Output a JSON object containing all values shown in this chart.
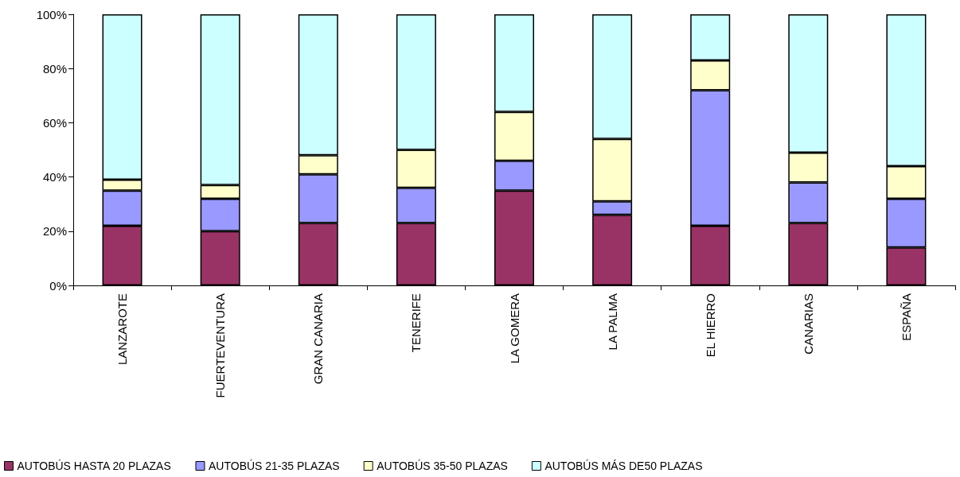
{
  "chart_data": {
    "type": "bar",
    "stacked": true,
    "categories": [
      "LANZAROTE",
      "FUERTEVENTURA",
      "GRAN CANARIA",
      "TENERIFE",
      "LA GOMERA",
      "LA PALMA",
      "EL HIERRO",
      "CANARIAS",
      "ESPAÑA"
    ],
    "series": [
      {
        "name": "AUTOBÚS HASTA 20 PLAZAS",
        "color": "#993366",
        "values": [
          22,
          20,
          23,
          23,
          35,
          26,
          22,
          23,
          14
        ]
      },
      {
        "name": "AUTOBÚS 21-35 PLAZAS",
        "color": "#9999ff",
        "values": [
          13,
          12,
          18,
          13,
          11,
          5,
          50,
          15,
          18
        ]
      },
      {
        "name": "AUTOBÚS 35-50 PLAZAS",
        "color": "#ffffcc",
        "values": [
          4,
          5,
          7,
          14,
          18,
          23,
          11,
          11,
          12
        ]
      },
      {
        "name": "AUTOBÚS MÁS DE50 PLAZAS",
        "color": "#ccffff",
        "values": [
          61,
          63,
          52,
          50,
          36,
          46,
          17,
          51,
          56
        ]
      }
    ],
    "ylim": [
      0,
      100
    ],
    "yticks": [
      {
        "value": 0,
        "label": "0%"
      },
      {
        "value": 20,
        "label": "20%"
      },
      {
        "value": 40,
        "label": "40%"
      },
      {
        "value": 60,
        "label": "60%"
      },
      {
        "value": 80,
        "label": "80%"
      },
      {
        "value": 100,
        "label": "100%"
      }
    ],
    "grid": false,
    "legend": "bottom"
  }
}
